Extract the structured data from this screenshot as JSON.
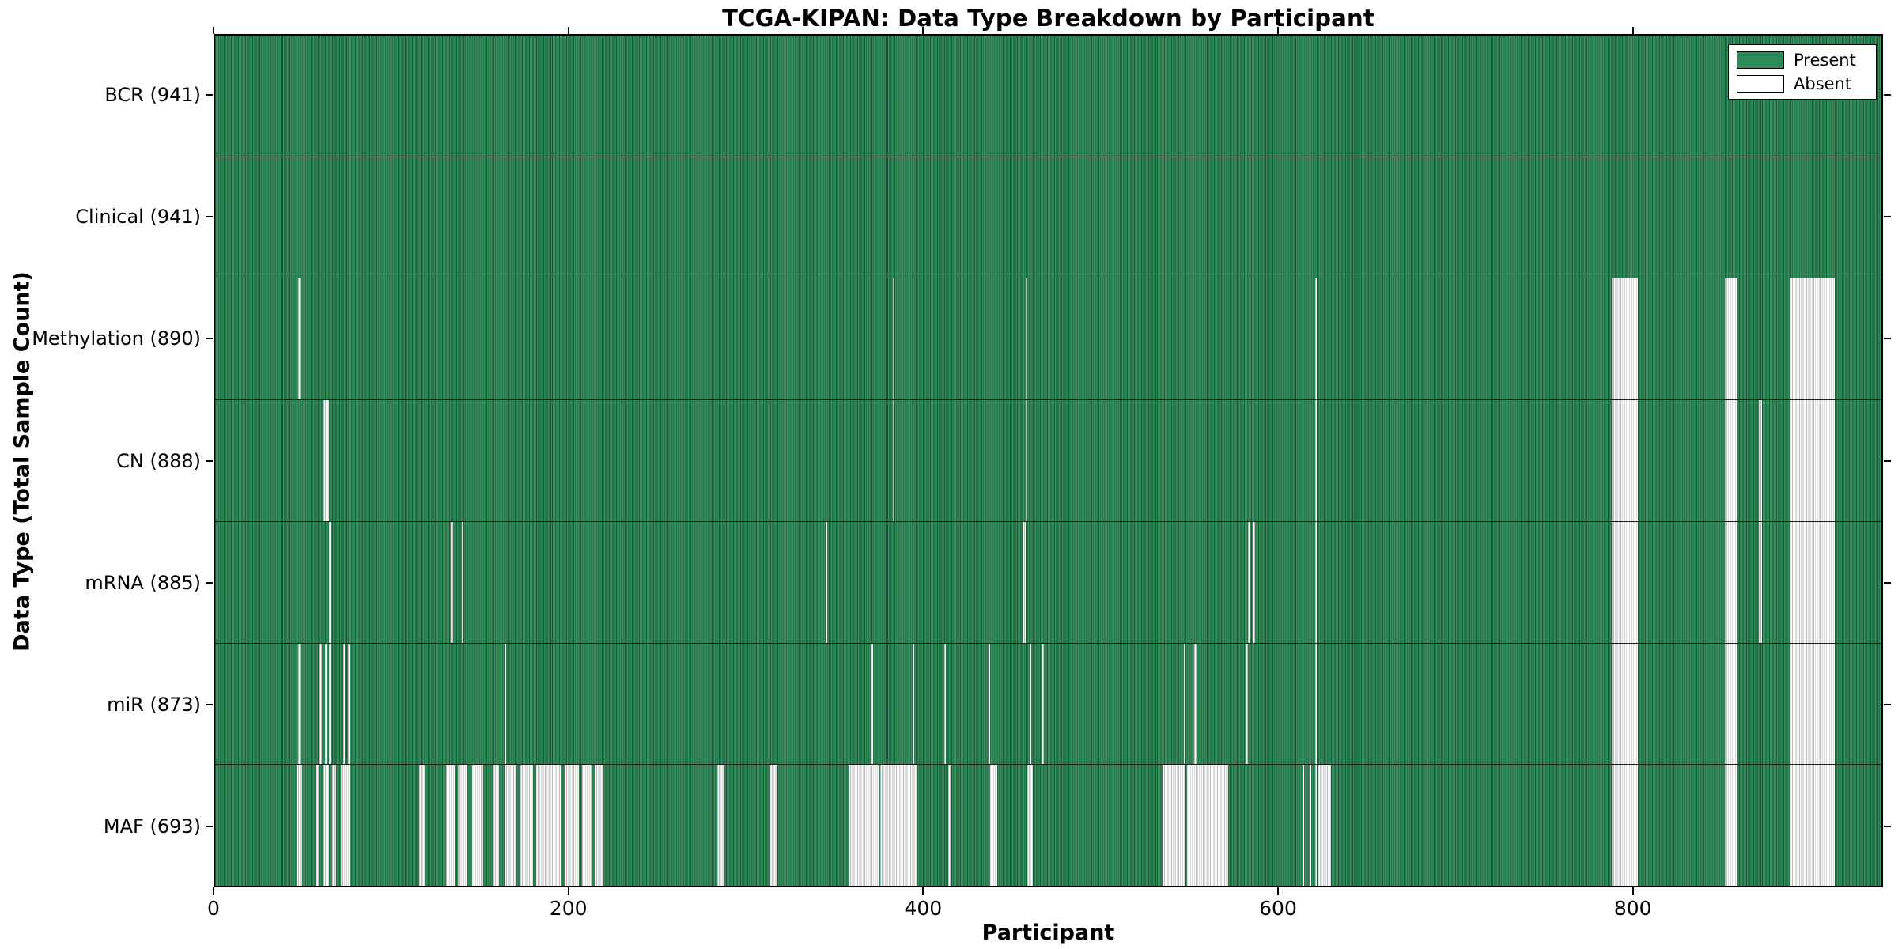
{
  "chart_data": {
    "type": "heatmap",
    "title": "TCGA-KIPAN: Data Type Breakdown by Participant",
    "xlabel": "Participant",
    "ylabel": "Data Type (Total Sample Count)",
    "x_range": [
      0,
      941
    ],
    "x_ticks": [
      0,
      200,
      400,
      600,
      800
    ],
    "grid": false,
    "legend": {
      "position": "upper-right",
      "entries": [
        {
          "label": "Present",
          "color": "#2e8b57"
        },
        {
          "label": "Absent",
          "color": "#ffffff"
        }
      ]
    },
    "colors": {
      "present": "#2e8b57",
      "absent": "#f1f1f1",
      "border": "#000000"
    },
    "rows": [
      {
        "name": "bcr",
        "label": "BCR (941)",
        "total_samples": 941,
        "absent_ranges": []
      },
      {
        "name": "clinical",
        "label": "Clinical (941)",
        "total_samples": 941,
        "absent_ranges": []
      },
      {
        "name": "methylation",
        "label": "Methylation (890)",
        "total_samples": 890,
        "absent_ranges": [
          [
            47,
            47
          ],
          [
            382,
            382
          ],
          [
            457,
            457
          ],
          [
            620,
            620
          ],
          [
            787,
            801
          ],
          [
            851,
            857
          ],
          [
            888,
            912
          ]
        ]
      },
      {
        "name": "cn",
        "label": "CN (888)",
        "total_samples": 888,
        "absent_ranges": [
          [
            61,
            63
          ],
          [
            382,
            382
          ],
          [
            457,
            457
          ],
          [
            620,
            620
          ],
          [
            787,
            801
          ],
          [
            851,
            857
          ],
          [
            870,
            871
          ],
          [
            888,
            912
          ]
        ]
      },
      {
        "name": "mrna",
        "label": "mRNA (885)",
        "total_samples": 885,
        "absent_ranges": [
          [
            64,
            64
          ],
          [
            133,
            133
          ],
          [
            139,
            139
          ],
          [
            344,
            344
          ],
          [
            455,
            456
          ],
          [
            582,
            582
          ],
          [
            585,
            585
          ],
          [
            620,
            620
          ],
          [
            787,
            801
          ],
          [
            851,
            857
          ],
          [
            870,
            871
          ],
          [
            888,
            912
          ]
        ]
      },
      {
        "name": "mir",
        "label": "miR (873)",
        "total_samples": 873,
        "absent_ranges": [
          [
            47,
            47
          ],
          [
            59,
            59
          ],
          [
            62,
            62
          ],
          [
            64,
            64
          ],
          [
            72,
            72
          ],
          [
            75,
            75
          ],
          [
            163,
            163
          ],
          [
            370,
            370
          ],
          [
            393,
            393
          ],
          [
            411,
            411
          ],
          [
            436,
            436
          ],
          [
            459,
            459
          ],
          [
            466,
            466
          ],
          [
            546,
            546
          ],
          [
            552,
            552
          ],
          [
            581,
            581
          ],
          [
            620,
            620
          ],
          [
            787,
            801
          ],
          [
            851,
            857
          ],
          [
            888,
            912
          ]
        ]
      },
      {
        "name": "maf",
        "label": "MAF (693)",
        "total_samples": 693,
        "absent_ranges": [
          [
            46,
            48
          ],
          [
            57,
            58
          ],
          [
            61,
            63
          ],
          [
            66,
            67
          ],
          [
            71,
            75
          ],
          [
            115,
            117
          ],
          [
            130,
            134
          ],
          [
            137,
            141
          ],
          [
            145,
            150
          ],
          [
            157,
            159
          ],
          [
            163,
            169
          ],
          [
            172,
            178
          ],
          [
            181,
            194
          ],
          [
            197,
            204
          ],
          [
            207,
            211
          ],
          [
            214,
            218
          ],
          [
            283,
            286
          ],
          [
            313,
            316
          ],
          [
            357,
            373
          ],
          [
            375,
            395
          ],
          [
            413,
            414
          ],
          [
            437,
            440
          ],
          [
            458,
            460
          ],
          [
            534,
            546
          ],
          [
            548,
            570
          ],
          [
            613,
            613
          ],
          [
            617,
            617
          ],
          [
            620,
            620
          ],
          [
            622,
            628
          ],
          [
            787,
            801
          ],
          [
            851,
            857
          ],
          [
            888,
            912
          ]
        ]
      }
    ]
  }
}
